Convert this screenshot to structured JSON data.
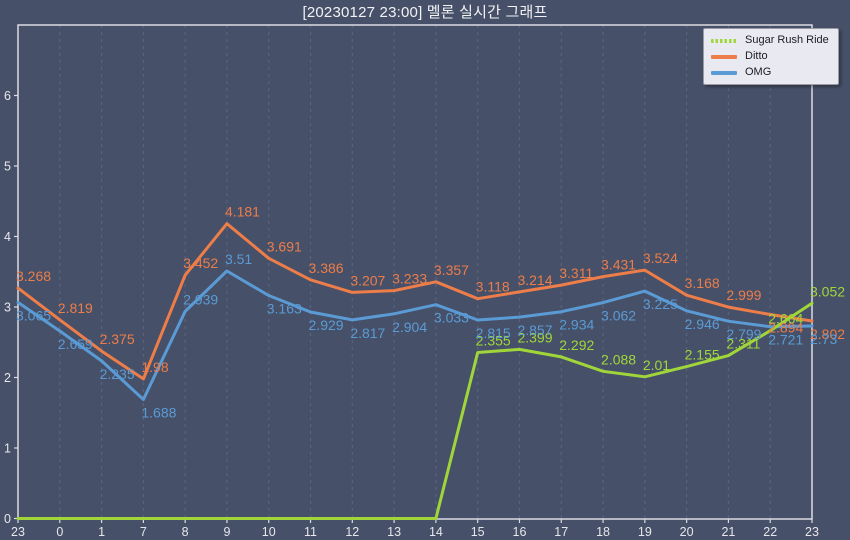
{
  "title": "[20230127 23:00] 멜론 실시간 그래프",
  "colors": {
    "background": "#465068",
    "plot_border": "#dcdce2",
    "gridline": "#5a637d",
    "axis_text": "#e7e7ec",
    "title_text": "#f2f2f5",
    "legend_bg": "#e9e9f1",
    "legend_border": "#9b9ba6",
    "legend_text": "#1b1b22",
    "series_green": "#a0d63a",
    "series_orange": "#ed7d49",
    "series_blue": "#5b9bd5"
  },
  "legend": {
    "position": "top-right",
    "items": [
      {
        "label": "Sugar Rush Ride",
        "color": "#a0d63a",
        "swatch_style": "dashed"
      },
      {
        "label": "Ditto",
        "color": "#ed7d49",
        "swatch_style": "solid"
      },
      {
        "label": "OMG",
        "color": "#5b9bd5",
        "swatch_style": "solid"
      }
    ]
  },
  "chart_data": {
    "type": "line",
    "title": "[20230127 23:00] 멜론 실시간 그래프",
    "xlabel": "",
    "ylabel": "",
    "x_tick_labels": [
      "23",
      "0",
      "1",
      "7",
      "8",
      "9",
      "10",
      "11",
      "12",
      "13",
      "14",
      "15",
      "16",
      "17",
      "18",
      "19",
      "20",
      "21",
      "22",
      "23"
    ],
    "y_ticks": [
      0,
      1,
      2,
      3,
      4,
      5,
      6
    ],
    "ylim": [
      0,
      7
    ],
    "grid": "vertical-dashed-only",
    "legend_position": "top-right",
    "series": [
      {
        "name": "Sugar Rush Ride",
        "color": "#a0d63a",
        "values": [
          0,
          0,
          0,
          0,
          0,
          0,
          0,
          0,
          0,
          0,
          0,
          2.355,
          2.399,
          2.292,
          2.088,
          2.01,
          2.155,
          2.311,
          2.664,
          3.052
        ],
        "labels": [
          "",
          "",
          "",
          "",
          "",
          "",
          "",
          "",
          "",
          "",
          "",
          "2.355",
          "2.399",
          "2.292",
          "2.088",
          "2.01",
          "2.155",
          "2.311",
          "2.664",
          "3.052"
        ],
        "label_side": [
          "",
          "",
          "",
          "",
          "",
          "",
          "",
          "",
          "",
          "",
          "",
          "above",
          "above",
          "above",
          "above",
          "above",
          "above",
          "above",
          "above",
          "above"
        ]
      },
      {
        "name": "Ditto",
        "color": "#ed7d49",
        "values": [
          3.268,
          2.819,
          2.375,
          1.98,
          3.452,
          4.181,
          3.691,
          3.386,
          3.207,
          3.233,
          3.357,
          3.118,
          3.214,
          3.311,
          3.431,
          3.524,
          3.168,
          2.999,
          2.894,
          2.802
        ],
        "labels": [
          "3.268",
          "2.819",
          "2.375",
          "1.98",
          "3.452",
          "4.181",
          "3.691",
          "3.386",
          "3.207",
          "3.233",
          "3.357",
          "3.118",
          "3.214",
          "3.311",
          "3.431",
          "3.524",
          "3.168",
          "2.999",
          "2.894",
          "2.802"
        ],
        "label_side": [
          "above",
          "above",
          "above",
          "above",
          "above",
          "above",
          "above",
          "above",
          "above",
          "above",
          "above",
          "above",
          "above",
          "above",
          "above",
          "above",
          "above",
          "above",
          "below",
          "below"
        ]
      },
      {
        "name": "OMG",
        "color": "#5b9bd5",
        "values": [
          3.065,
          2.659,
          2.235,
          1.688,
          2.939,
          3.51,
          3.163,
          2.929,
          2.817,
          2.904,
          3.033,
          2.815,
          2.857,
          2.934,
          3.062,
          3.225,
          2.946,
          2.799,
          2.721,
          2.73
        ],
        "labels": [
          "3.065",
          "2.659",
          "2.235",
          "1.688",
          "2.939",
          "3.51",
          "3.163",
          "2.929",
          "2.817",
          "2.904",
          "3.033",
          "2.815",
          "2.857",
          "2.934",
          "3.062",
          "3.225",
          "2.946",
          "2.799",
          "2.721",
          "2.73"
        ],
        "label_side": [
          "below",
          "below",
          "below",
          "below",
          "above",
          "above",
          "below",
          "below",
          "below",
          "below",
          "below",
          "below",
          "below",
          "below",
          "below",
          "below",
          "below",
          "below",
          "below",
          "below"
        ]
      }
    ],
    "draw_order": [
      1,
      2,
      0
    ]
  }
}
